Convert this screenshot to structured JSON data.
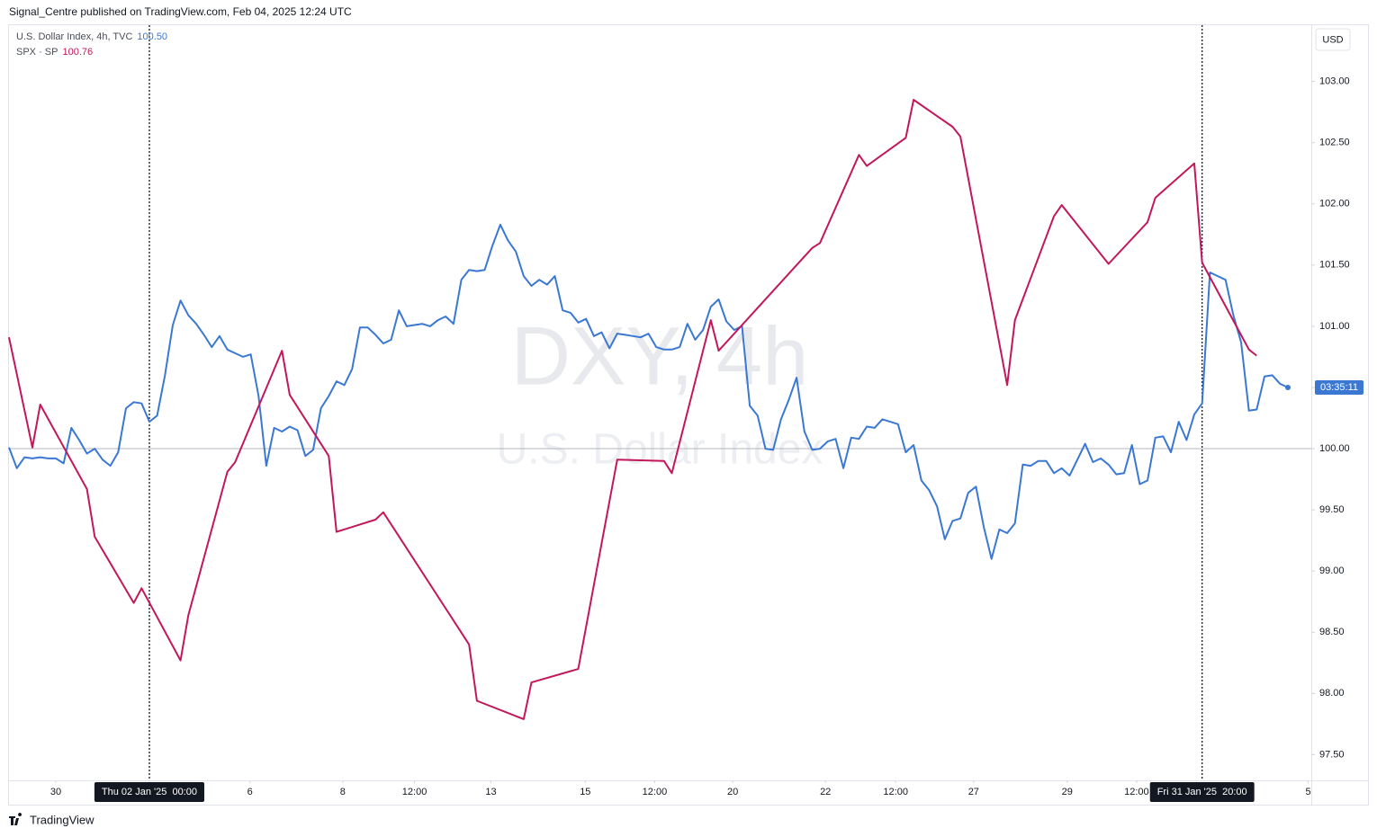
{
  "header": "Signal_Centre published on TradingView.com, Feb 04, 2025 12:24 UTC",
  "footer": "TradingView",
  "chart_data": {
    "type": "line",
    "watermark": {
      "symbol": "DXY, 4h",
      "description": "U.S. Dollar Index"
    },
    "currency": "USD",
    "countdown": "03:35:11",
    "baseline": 100,
    "grid": false,
    "xlim": [
      0,
      167
    ],
    "ylim": [
      97.29,
      103.46
    ],
    "yticks": [
      {
        "value": 97.5,
        "label": "97.50"
      },
      {
        "value": 98,
        "label": "98.00"
      },
      {
        "value": 98.5,
        "label": "98.50"
      },
      {
        "value": 99,
        "label": "99.00"
      },
      {
        "value": 99.5,
        "label": "99.50"
      },
      {
        "value": 100,
        "label": "100.00"
      },
      {
        "value": 100.5,
        "label": "100.50"
      },
      {
        "value": 101,
        "label": "101.00"
      },
      {
        "value": 101.5,
        "label": "101.50"
      },
      {
        "value": 102,
        "label": "102.00"
      },
      {
        "value": 102.5,
        "label": "102.50"
      },
      {
        "value": 103,
        "label": "103.00"
      }
    ],
    "xticks": [
      {
        "value": 6,
        "label": "30"
      },
      {
        "value": 30.9,
        "label": "6"
      },
      {
        "value": 42.8,
        "label": "8"
      },
      {
        "value": 52,
        "label": "12:00"
      },
      {
        "value": 61.8,
        "label": "13"
      },
      {
        "value": 73.9,
        "label": "15"
      },
      {
        "value": 82.8,
        "label": "12:00"
      },
      {
        "value": 92.8,
        "label": "20"
      },
      {
        "value": 104.7,
        "label": "22"
      },
      {
        "value": 113.7,
        "label": "12:00"
      },
      {
        "value": 123.7,
        "label": "27"
      },
      {
        "value": 135.7,
        "label": "29"
      },
      {
        "value": 144.6,
        "label": "12:00"
      },
      {
        "value": 166.6,
        "label": "5"
      }
    ],
    "crosshairs": [
      {
        "x": 18,
        "label": "Thu 02 Jan '25  00:00"
      },
      {
        "x": 153,
        "label": "Fri 31 Jan '25  20:00"
      }
    ],
    "series": [
      {
        "name": "U.S. Dollar Index, 4h, TVC",
        "legend_value": "100.50",
        "color": "#3a78d4",
        "x": [
          0,
          1,
          2,
          3,
          4,
          5,
          6,
          7,
          8,
          9,
          10,
          11,
          12,
          13,
          14,
          15,
          16,
          17,
          18,
          19,
          20,
          21,
          22,
          23,
          24,
          25,
          26,
          27,
          28,
          29,
          30,
          31,
          32,
          33,
          34,
          35,
          36,
          37,
          38,
          39,
          40,
          41,
          42,
          43,
          44,
          45,
          46,
          47,
          48,
          49,
          50,
          51,
          52,
          53,
          54,
          55,
          56,
          57,
          58,
          59,
          60,
          61,
          62,
          63,
          64,
          65,
          66,
          67,
          68,
          69,
          70,
          71,
          72,
          73,
          74,
          75,
          76,
          77,
          78,
          79,
          80,
          81,
          82,
          83,
          84,
          85,
          86,
          87,
          88,
          89,
          90,
          91,
          92,
          93,
          94,
          95,
          96,
          97,
          98,
          99,
          100,
          101,
          102,
          103,
          104,
          105,
          106,
          107,
          108,
          109,
          110,
          111,
          112,
          113,
          114,
          115,
          116,
          117,
          118,
          119,
          120,
          121,
          122,
          123,
          124,
          125,
          126,
          127,
          128,
          129,
          130,
          131,
          132,
          133,
          134,
          135,
          136,
          137,
          138,
          139,
          140,
          141,
          142,
          143,
          144,
          145,
          146,
          147,
          148,
          149,
          150,
          151,
          152,
          153,
          154,
          155,
          156,
          157,
          158,
          159,
          160,
          161,
          162,
          163,
          164
        ],
        "values": [
          100.01,
          99.84,
          99.93,
          99.92,
          99.93,
          99.92,
          99.92,
          99.88,
          100.17,
          100.07,
          99.96,
          100.0,
          99.91,
          99.86,
          99.97,
          100.33,
          100.38,
          100.37,
          100.22,
          100.27,
          100.6,
          101.01,
          101.21,
          101.09,
          101.02,
          100.93,
          100.83,
          100.92,
          100.81,
          100.78,
          100.75,
          100.77,
          100.43,
          99.86,
          100.17,
          100.14,
          100.18,
          100.15,
          99.94,
          99.99,
          100.33,
          100.43,
          100.55,
          100.52,
          100.65,
          100.99,
          100.99,
          100.93,
          100.86,
          100.89,
          101.13,
          101.0,
          101.01,
          101.02,
          101.0,
          101.05,
          101.08,
          101.02,
          101.38,
          101.46,
          101.45,
          101.46,
          101.66,
          101.83,
          101.7,
          101.61,
          101.41,
          101.33,
          101.38,
          101.34,
          101.41,
          101.13,
          101.11,
          101.03,
          101.06,
          100.92,
          100.95,
          100.82,
          100.94,
          100.93,
          100.92,
          100.91,
          100.94,
          100.83,
          100.81,
          100.81,
          100.83,
          101.02,
          100.89,
          100.97,
          101.16,
          101.22,
          101.04,
          100.97,
          101.0,
          100.35,
          100.27,
          100.0,
          99.99,
          100.24,
          100.4,
          100.58,
          100.14,
          99.99,
          100.0,
          100.06,
          100.08,
          99.84,
          100.09,
          100.08,
          100.18,
          100.17,
          100.24,
          100.22,
          100.2,
          99.97,
          100.03,
          99.74,
          99.66,
          99.53,
          99.26,
          99.41,
          99.43,
          99.64,
          99.69,
          99.36,
          99.1,
          99.34,
          99.31,
          99.39,
          99.87,
          99.86,
          99.9,
          99.9,
          99.8,
          99.84,
          99.78,
          99.91,
          100.04,
          99.89,
          99.92,
          99.87,
          99.79,
          99.8,
          100.03,
          99.71,
          99.74,
          100.09,
          100.1,
          99.97,
          100.22,
          100.07,
          100.28,
          100.37,
          101.44,
          101.41,
          101.38,
          101.09,
          100.87,
          100.31,
          100.32,
          100.59,
          100.6,
          100.53,
          100.5
        ]
      },
      {
        "name": "SPX · SP",
        "legend_value": "100.76",
        "color": "#c2185b",
        "x": [
          0,
          3,
          4,
          10,
          11,
          16,
          17,
          22,
          23,
          28,
          29,
          35,
          36,
          41,
          42,
          47,
          48,
          59,
          60,
          66,
          67,
          73,
          78,
          84,
          85,
          90,
          91,
          103,
          104,
          109,
          110,
          115,
          116,
          121,
          122,
          128,
          129,
          134,
          135,
          141,
          146,
          147,
          152,
          153,
          159,
          160
        ],
        "values": [
          100.91,
          100.01,
          100.36,
          99.67,
          99.28,
          98.74,
          98.86,
          98.27,
          98.64,
          99.81,
          99.89,
          100.8,
          100.44,
          99.94,
          99.32,
          99.42,
          99.48,
          98.4,
          97.94,
          97.79,
          98.09,
          98.2,
          99.91,
          99.9,
          99.8,
          101.05,
          100.8,
          101.64,
          101.68,
          102.4,
          102.31,
          102.54,
          102.85,
          102.63,
          102.55,
          100.52,
          101.05,
          101.9,
          101.99,
          101.51,
          101.85,
          102.05,
          102.33,
          101.52,
          100.81,
          100.76
        ]
      }
    ]
  }
}
